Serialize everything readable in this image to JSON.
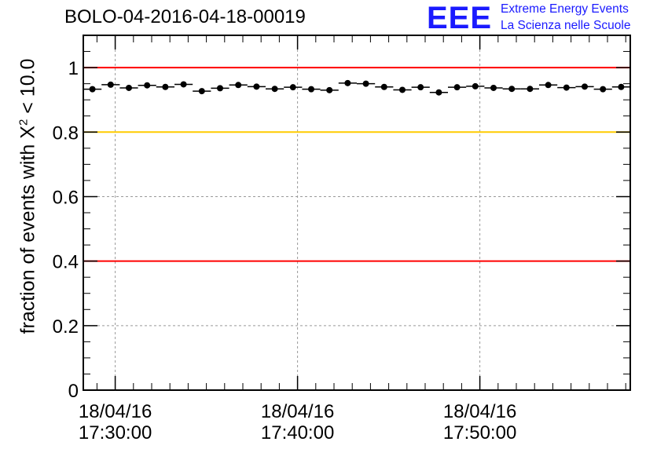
{
  "header": {
    "title": "BOLO-04-2016-04-18-00019",
    "logo_mark": "EEE",
    "logo_line1": "Extreme Energy Events",
    "logo_line2": "La Scienza nelle Scuole"
  },
  "colors": {
    "logo": "#1a1aff",
    "threshold_red": "#ff0000",
    "threshold_yellow": "#ffcc00",
    "grid": "#999999",
    "points": "#000000"
  },
  "chart_data": {
    "type": "scatter",
    "title": "BOLO-04-2016-04-18-00019",
    "ylabel_prefix": "fraction of events with X",
    "ylabel_sup": "2",
    "ylabel_suffix": " < 10.0",
    "xlabel": "",
    "x_start": "2016-04-18 17:28:15",
    "x_end": "2016-04-18 17:58:15",
    "ylim": [
      0,
      1.1
    ],
    "yticks": [
      {
        "value": 0,
        "label": "0"
      },
      {
        "value": 0.2,
        "label": "0.2"
      },
      {
        "value": 0.4,
        "label": "0.4"
      },
      {
        "value": 0.6,
        "label": "0.6"
      },
      {
        "value": 0.8,
        "label": "0.8"
      },
      {
        "value": 1,
        "label": "1"
      }
    ],
    "xticks": [
      {
        "time": "2016-04-18 17:30:00",
        "date": "18/04/16",
        "clock": "17:30:00"
      },
      {
        "time": "2016-04-18 17:40:00",
        "date": "18/04/16",
        "clock": "17:40:00"
      },
      {
        "time": "2016-04-18 17:50:00",
        "date": "18/04/16",
        "clock": "17:50:00"
      }
    ],
    "grid": true,
    "reference_lines": [
      {
        "y": 1.0,
        "color": "#ff0000"
      },
      {
        "y": 0.8,
        "color": "#ffcc00"
      },
      {
        "y": 0.4,
        "color": "#ff0000"
      }
    ],
    "bin_width_seconds": 60,
    "series": [
      {
        "x": [
          "17:28:45",
          "17:29:45",
          "17:30:45",
          "17:31:45",
          "17:32:45",
          "17:33:45",
          "17:34:45",
          "17:35:45",
          "17:36:45",
          "17:37:45",
          "17:38:45",
          "17:39:45",
          "17:40:45",
          "17:41:45",
          "17:42:45",
          "17:43:45",
          "17:44:45",
          "17:45:45",
          "17:46:45",
          "17:47:45",
          "17:48:45",
          "17:49:45",
          "17:50:45",
          "17:51:45",
          "17:52:45",
          "17:53:45",
          "17:54:45",
          "17:55:45",
          "17:56:45",
          "17:57:45"
        ],
        "values": [
          0.933,
          0.947,
          0.937,
          0.945,
          0.94,
          0.948,
          0.927,
          0.936,
          0.946,
          0.941,
          0.934,
          0.939,
          0.933,
          0.93,
          0.952,
          0.95,
          0.94,
          0.931,
          0.939,
          0.923,
          0.939,
          0.942,
          0.937,
          0.934,
          0.934,
          0.946,
          0.938,
          0.941,
          0.933,
          0.94
        ]
      }
    ]
  }
}
